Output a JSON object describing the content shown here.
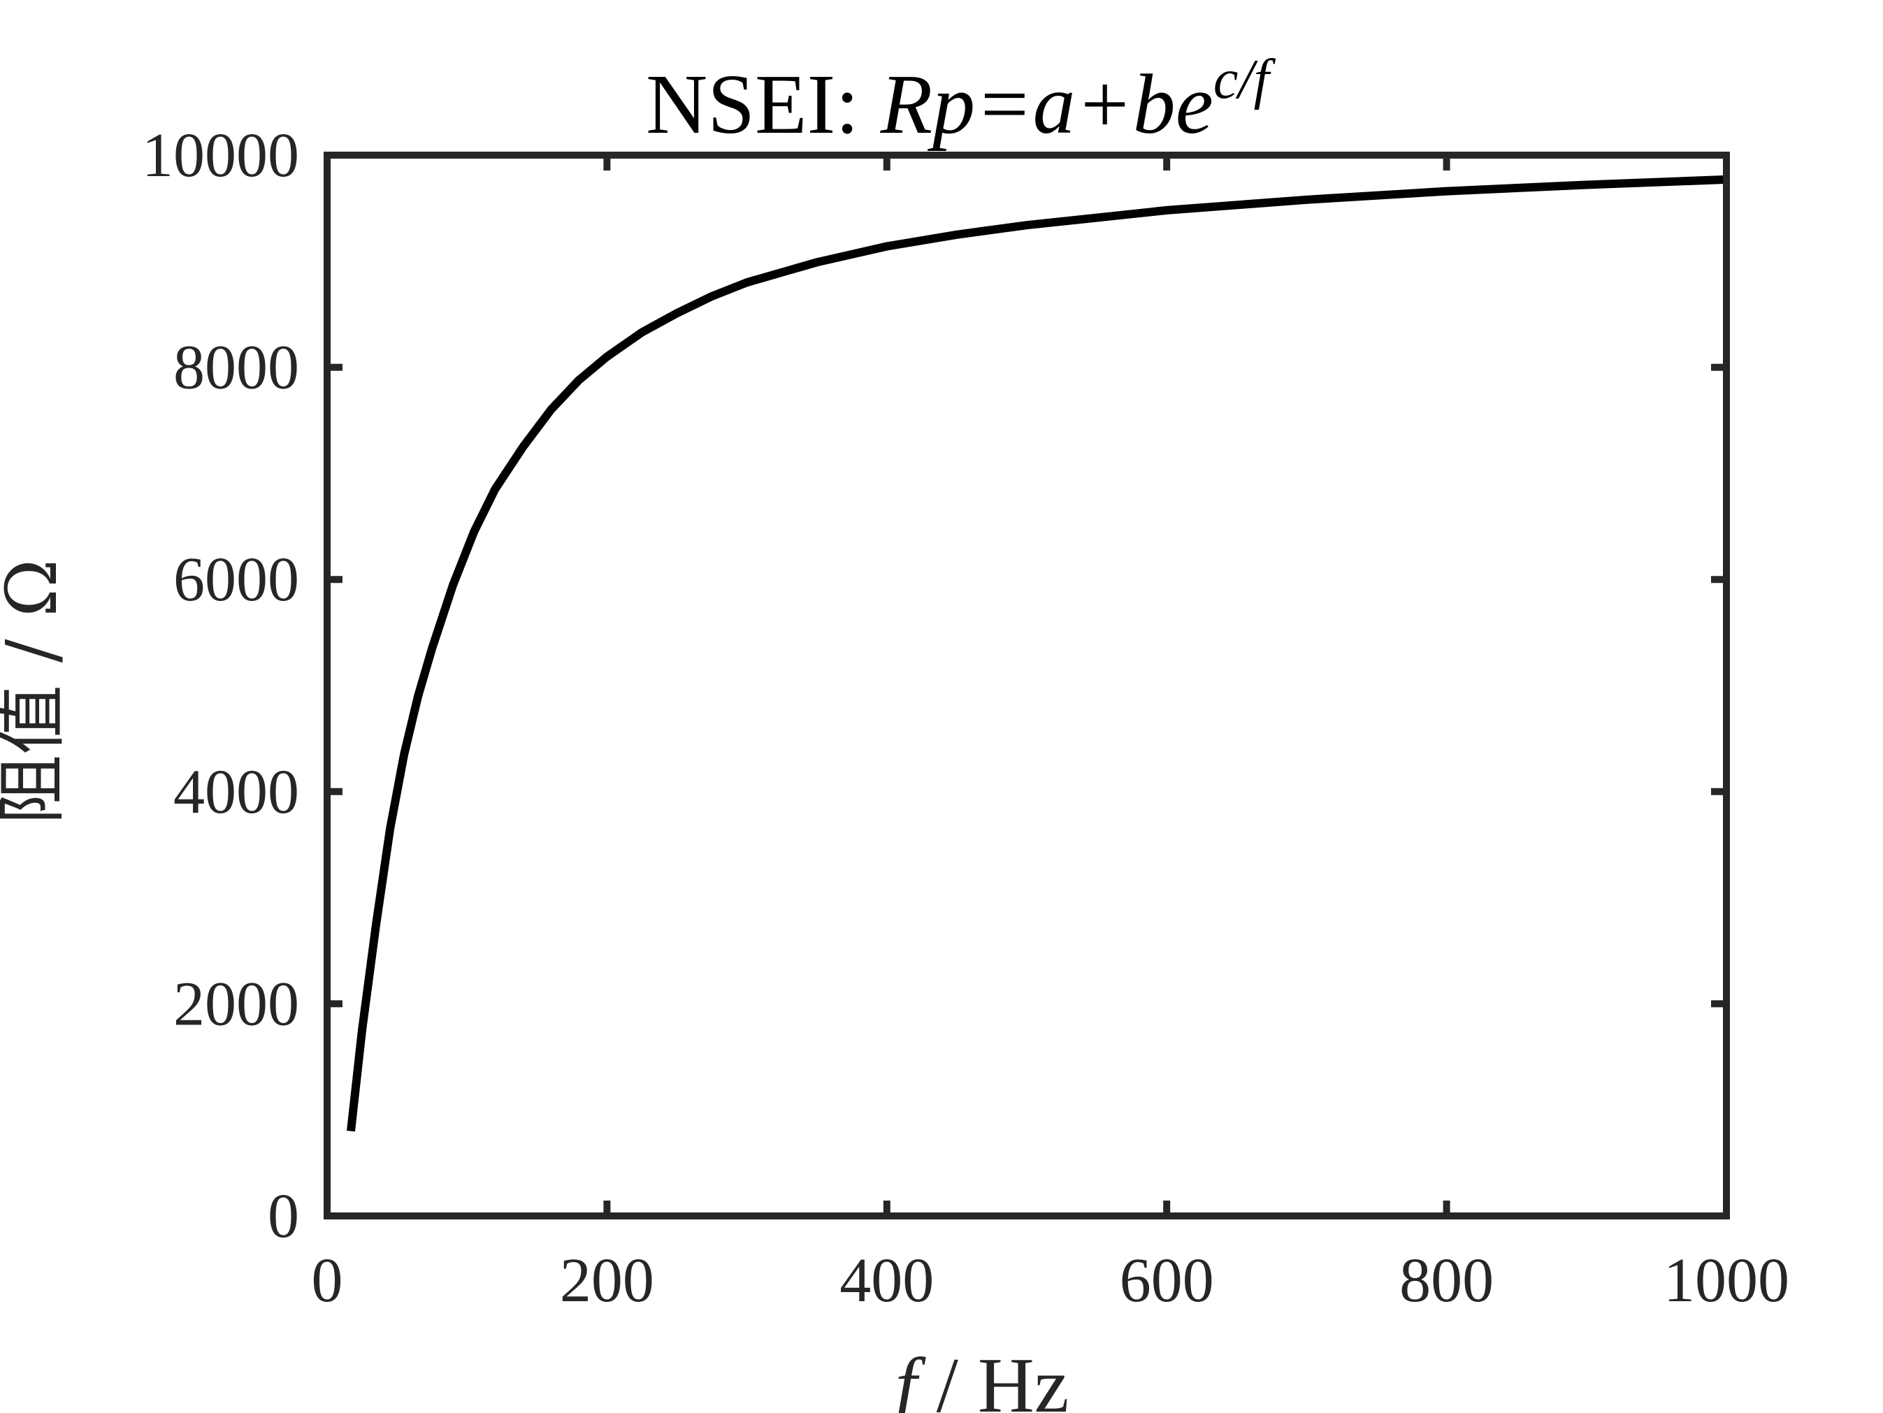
{
  "chart_data": {
    "type": "line",
    "title": {
      "prefix": "NSEI: ",
      "formula": "Rp=a+be",
      "exponent": "c/f"
    },
    "xlabel": {
      "symbol": "f",
      "unit": " / Hz"
    },
    "ylabel": "阻值 / Ω",
    "xlim": [
      0,
      1000
    ],
    "ylim": [
      0,
      10000
    ],
    "xticks": [
      0,
      200,
      400,
      600,
      800,
      1000
    ],
    "yticks": [
      0,
      2000,
      4000,
      6000,
      8000,
      10000
    ],
    "xtick_labels": [
      "0",
      "200",
      "400",
      "600",
      "800",
      "1000"
    ],
    "ytick_labels": [
      "0",
      "2000",
      "4000",
      "6000",
      "8000",
      "10000"
    ],
    "grid": false,
    "line_color": "#000000",
    "axis_color": "#262626",
    "series": [
      {
        "x": [
          17,
          25,
          35,
          45,
          55,
          65,
          75,
          90,
          105,
          120,
          140,
          160,
          180,
          200,
          225,
          250,
          275,
          300,
          350,
          400,
          450,
          500,
          600,
          700,
          800,
          900,
          1000
        ],
        "y": [
          800,
          1750,
          2750,
          3650,
          4350,
          4900,
          5350,
          5950,
          6450,
          6850,
          7250,
          7600,
          7880,
          8100,
          8330,
          8510,
          8670,
          8800,
          8990,
          9140,
          9250,
          9340,
          9480,
          9580,
          9660,
          9720,
          9770
        ]
      }
    ]
  }
}
